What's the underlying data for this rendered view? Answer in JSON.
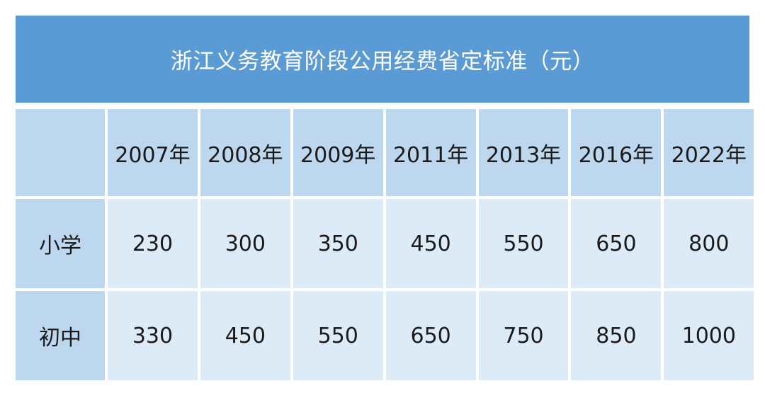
{
  "title": "浙江义务教育阶段公用经费省定标准（元）",
  "columns": [
    "2007年",
    "2008年",
    "2009年",
    "2011年",
    "2013年",
    "2016年",
    "2022年"
  ],
  "rows": [
    {
      "label": "小学",
      "values": [
        "230",
        "300",
        "350",
        "450",
        "550",
        "650",
        "800"
      ]
    },
    {
      "label": "初中",
      "values": [
        "330",
        "450",
        "550",
        "650",
        "750",
        "850",
        "1000"
      ]
    }
  ],
  "colors": {
    "title_bg": "#5b9bd5",
    "header_bg": "#bdd7ee",
    "cell_bg": "#ddebf7"
  }
}
